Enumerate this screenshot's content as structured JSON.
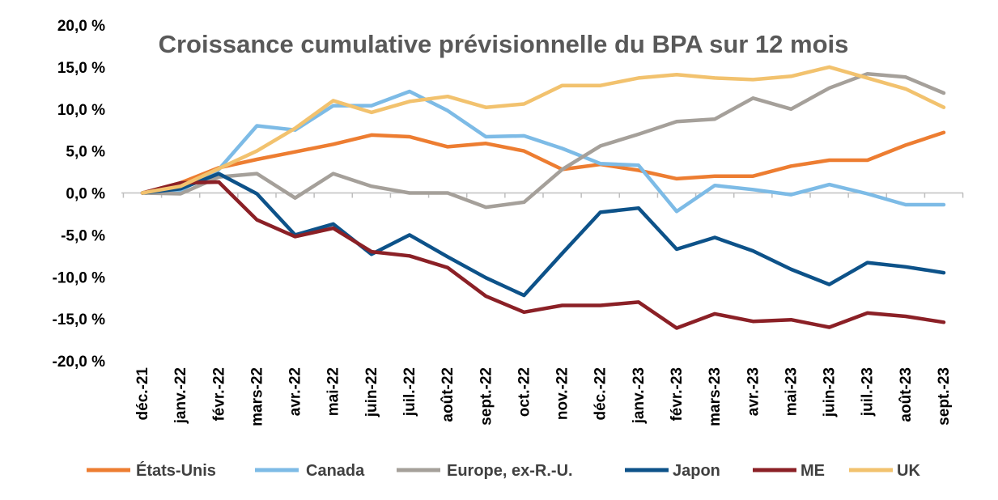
{
  "chart_data": {
    "type": "line",
    "title": "Croissance cumulative prévisionnelle du BPA sur 12 mois",
    "xlabel": "",
    "ylabel": "",
    "ylim": [
      -20,
      20
    ],
    "yticks": [
      "20,0 %",
      "15,0 %",
      "10,0 %",
      "5,0 %",
      "0,0 %",
      "-5,0 %",
      "-10,0 %",
      "-15,0 %",
      "-20,0 %"
    ],
    "categories": [
      "déc.-21",
      "janv.-22",
      "févr.-22",
      "mars-22",
      "avr.-22",
      "mai-22",
      "juin-22",
      "juil.-22",
      "août-22",
      "sept.-22",
      "oct.-22",
      "nov.-22",
      "déc.-22",
      "janv.-23",
      "févr.-23",
      "mars-23",
      "avr.-23",
      "mai-23",
      "juin-23",
      "juil.-23",
      "août-23",
      "sept.-23"
    ],
    "legend_position": "bottom",
    "grid": false,
    "series": [
      {
        "name": "États-Unis",
        "color": "#ED7D31",
        "values": [
          0,
          1.2,
          3.0,
          4.0,
          4.9,
          5.8,
          6.9,
          6.7,
          5.5,
          5.9,
          5.0,
          2.8,
          3.4,
          2.7,
          1.7,
          2.0,
          2.0,
          3.2,
          3.9,
          3.9,
          5.7,
          7.2
        ]
      },
      {
        "name": "Canada",
        "color": "#7DBBE6",
        "values": [
          0,
          0.3,
          2.8,
          8.0,
          7.5,
          10.4,
          10.4,
          12.1,
          9.8,
          6.7,
          6.8,
          5.3,
          3.5,
          3.3,
          -2.2,
          0.9,
          0.4,
          -0.2,
          1.0,
          -0.1,
          -1.4,
          -1.4
        ]
      },
      {
        "name": "Europe, ex-R.-U.",
        "color": "#A5A09A",
        "values": [
          0,
          -0.1,
          1.9,
          2.3,
          -0.6,
          2.3,
          0.8,
          0,
          0,
          -1.7,
          -1.1,
          2.8,
          5.6,
          7.0,
          8.5,
          8.8,
          11.3,
          10.0,
          12.5,
          14.2,
          13.8,
          11.9
        ]
      },
      {
        "name": "Japon",
        "color": "#0D5289",
        "values": [
          0,
          0.5,
          2.3,
          -0.1,
          -5.0,
          -3.7,
          -7.3,
          -5.0,
          -7.6,
          -10.1,
          -12.2,
          -7.2,
          -2.3,
          -1.8,
          -6.7,
          -5.3,
          -6.9,
          -9.1,
          -10.9,
          -8.3,
          -8.8,
          -9.5
        ]
      },
      {
        "name": "ME",
        "color": "#8B2026",
        "values": [
          0,
          1.2,
          1.3,
          -3.2,
          -5.2,
          -4.2,
          -7.0,
          -7.5,
          -8.9,
          -12.3,
          -14.2,
          -13.4,
          -13.4,
          -13.0,
          -16.1,
          -14.4,
          -15.3,
          -15.1,
          -16.0,
          -14.3,
          -14.7,
          -15.4
        ]
      },
      {
        "name": "UK",
        "color": "#F2C26E",
        "values": [
          0,
          0.8,
          2.9,
          5.0,
          7.7,
          11.0,
          9.6,
          10.9,
          11.5,
          10.2,
          10.6,
          12.8,
          12.8,
          13.7,
          14.1,
          13.7,
          13.5,
          13.9,
          15.0,
          13.7,
          12.4,
          10.2
        ]
      }
    ]
  }
}
